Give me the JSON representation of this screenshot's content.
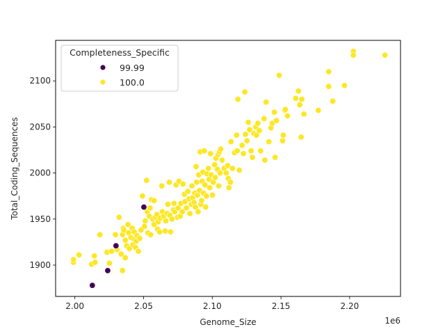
{
  "chart_data": {
    "type": "scatter",
    "title": "",
    "xlabel": "Genome_Size",
    "ylabel": "Total_Coding_Sequences",
    "x_offset_label": "1e6",
    "xlim": [
      1986000,
      2237000
    ],
    "ylim": [
      1866,
      2144
    ],
    "x_ticks": [
      2000000,
      2050000,
      2100000,
      2150000,
      2200000
    ],
    "x_tick_labels": [
      "2.00",
      "2.05",
      "2.10",
      "2.15",
      "2.20"
    ],
    "y_ticks": [
      1900,
      1950,
      2000,
      2050,
      2100
    ],
    "y_tick_labels": [
      "1900",
      "1950",
      "2000",
      "2050",
      "2100"
    ],
    "grid": false,
    "legend": {
      "title": "Completeness_Specific",
      "position": "upper left",
      "entries": [
        {
          "label": "99.99",
          "color": "#440154"
        },
        {
          "label": "100.0",
          "color": "#fde725"
        }
      ]
    },
    "series": [
      {
        "name": "99.99",
        "color": "#440154",
        "points": [
          [
            2012700,
            1878
          ],
          [
            2023900,
            1894
          ],
          [
            2029900,
            1921
          ],
          [
            2050200,
            1963
          ]
        ]
      },
      {
        "name": "100.0",
        "color": "#fde725",
        "points": [
          [
            1999000,
            1903
          ],
          [
            1999000,
            1906
          ],
          [
            2003000,
            1911
          ],
          [
            2012200,
            1901
          ],
          [
            2014700,
            1903
          ],
          [
            2014200,
            1910
          ],
          [
            2018200,
            1933
          ],
          [
            2023400,
            1914
          ],
          [
            2025200,
            1902
          ],
          [
            2026700,
            1915
          ],
          [
            2029500,
            1933
          ],
          [
            2030700,
            1917
          ],
          [
            2032200,
            1952
          ],
          [
            2033700,
            1912
          ],
          [
            2034700,
            1894
          ],
          [
            2034700,
            1933
          ],
          [
            2035200,
            1940
          ],
          [
            2035700,
            1938
          ],
          [
            2036700,
            1908
          ],
          [
            2036700,
            1927
          ],
          [
            2037700,
            1921
          ],
          [
            2038700,
            1944
          ],
          [
            2039200,
            1935
          ],
          [
            2039700,
            1918
          ],
          [
            2040700,
            1930
          ],
          [
            2041700,
            1940
          ],
          [
            2042200,
            1922
          ],
          [
            2043200,
            1928
          ],
          [
            2043200,
            1936
          ],
          [
            2044200,
            1919
          ],
          [
            2044700,
            1926
          ],
          [
            2045200,
            1932
          ],
          [
            2046200,
            1915
          ],
          [
            2047200,
            1929
          ],
          [
            2048200,
            1938
          ],
          [
            2049200,
            1975
          ],
          [
            2050700,
            1942
          ],
          [
            2051200,
            1948
          ],
          [
            2052200,
            1992
          ],
          [
            2052700,
            1958
          ],
          [
            2053200,
            1935
          ],
          [
            2054200,
            1953
          ],
          [
            2054700,
            1962
          ],
          [
            2055200,
            1933
          ],
          [
            2055700,
            1971
          ],
          [
            2056700,
            1950
          ],
          [
            2057700,
            1970
          ],
          [
            2057700,
            1944
          ],
          [
            2058700,
            1952
          ],
          [
            2059700,
            1955
          ],
          [
            2060200,
            1939
          ],
          [
            2060700,
            1947
          ],
          [
            2061700,
            1936
          ],
          [
            2062200,
            1951
          ],
          [
            2063200,
            1986
          ],
          [
            2063700,
            1958
          ],
          [
            2064700,
            1953
          ],
          [
            2065700,
            1937
          ],
          [
            2066200,
            1948
          ],
          [
            2067200,
            1956
          ],
          [
            2067700,
            1966
          ],
          [
            2068700,
            1990
          ],
          [
            2069200,
            1954
          ],
          [
            2069700,
            1936
          ],
          [
            2070700,
            1950
          ],
          [
            2071700,
            1960
          ],
          [
            2072200,
            1967
          ],
          [
            2072700,
            1958
          ],
          [
            2073700,
            1987
          ],
          [
            2074700,
            1952
          ],
          [
            2075200,
            1962
          ],
          [
            2075700,
            1991
          ],
          [
            2076700,
            1953
          ],
          [
            2077200,
            1967
          ],
          [
            2078200,
            1958
          ],
          [
            2078700,
            1988
          ],
          [
            2079700,
            1977
          ],
          [
            2080200,
            1969
          ],
          [
            2081200,
            1962
          ],
          [
            2082200,
            1980
          ],
          [
            2083200,
            1972
          ],
          [
            2083700,
            1956
          ],
          [
            2084700,
            1966
          ],
          [
            2085200,
            1986
          ],
          [
            2085700,
            1973
          ],
          [
            2086700,
            1968
          ],
          [
            2087200,
            1978
          ],
          [
            2087700,
            1963
          ],
          [
            2088200,
            2007
          ],
          [
            2088700,
            1990
          ],
          [
            2089200,
            1976
          ],
          [
            2089700,
            1958
          ],
          [
            2090200,
            1998
          ],
          [
            2090700,
            1981
          ],
          [
            2091200,
            2023
          ],
          [
            2091700,
            1966
          ],
          [
            2092200,
            1970
          ],
          [
            2092700,
            1991
          ],
          [
            2093200,
            2001
          ],
          [
            2093700,
            1978
          ],
          [
            2094200,
            2024
          ],
          [
            2094700,
            1987
          ],
          [
            2095200,
            1963
          ],
          [
            2095700,
            1975
          ],
          [
            2096200,
            1999
          ],
          [
            2097200,
            2005
          ],
          [
            2097700,
            1993
          ],
          [
            2098200,
            1984
          ],
          [
            2098700,
            2021
          ],
          [
            2099200,
            1998
          ],
          [
            2100200,
            1976
          ],
          [
            2100700,
            1990
          ],
          [
            2101700,
            2009
          ],
          [
            2102200,
            1995
          ],
          [
            2102700,
            2016
          ],
          [
            2103700,
            2004
          ],
          [
            2104200,
            2020
          ],
          [
            2104700,
            1986
          ],
          [
            2105200,
            2023
          ],
          [
            2105700,
            2000
          ],
          [
            2106200,
            2026
          ],
          [
            2107200,
            2014
          ],
          [
            2108700,
            2005
          ],
          [
            2110200,
            2000
          ],
          [
            2111200,
            2008
          ],
          [
            2111700,
            1994
          ],
          [
            2112200,
            1984
          ],
          [
            2113200,
            1990
          ],
          [
            2113700,
            2034
          ],
          [
            2114700,
            2005
          ],
          [
            2116200,
            2022
          ],
          [
            2117700,
            2041
          ],
          [
            2118200,
            2024
          ],
          [
            2118700,
            2080
          ],
          [
            2119700,
            2003
          ],
          [
            2121700,
            2030
          ],
          [
            2122700,
            2021
          ],
          [
            2123700,
            2088
          ],
          [
            2124200,
            2042
          ],
          [
            2125200,
            2035
          ],
          [
            2126200,
            2055
          ],
          [
            2127200,
            2047
          ],
          [
            2128200,
            2024
          ],
          [
            2129200,
            2017
          ],
          [
            2130200,
            2043
          ],
          [
            2131700,
            2050
          ],
          [
            2132200,
            2041
          ],
          [
            2133200,
            2054
          ],
          [
            2134200,
            2046
          ],
          [
            2135200,
            2024
          ],
          [
            2137700,
            2059
          ],
          [
            2138200,
            2014
          ],
          [
            2139200,
            2077
          ],
          [
            2141200,
            2034
          ],
          [
            2142700,
            2049
          ],
          [
            2143700,
            2054
          ],
          [
            2145200,
            2066
          ],
          [
            2145700,
            2017
          ],
          [
            2146700,
            2057
          ],
          [
            2148700,
            2106
          ],
          [
            2151200,
            2035
          ],
          [
            2151700,
            2041
          ],
          [
            2152700,
            2068
          ],
          [
            2153200,
            2069
          ],
          [
            2154700,
            2062
          ],
          [
            2160700,
            2081
          ],
          [
            2162700,
            2089
          ],
          [
            2163700,
            2074
          ],
          [
            2164700,
            2039
          ],
          [
            2165200,
            2080
          ],
          [
            2166700,
            2064
          ],
          [
            2177200,
            2068
          ],
          [
            2184700,
            2110
          ],
          [
            2184700,
            2094
          ],
          [
            2187700,
            2078
          ],
          [
            2196200,
            2095
          ],
          [
            2202700,
            2132
          ],
          [
            2202700,
            2128
          ],
          [
            2225700,
            2128
          ]
        ]
      }
    ]
  }
}
